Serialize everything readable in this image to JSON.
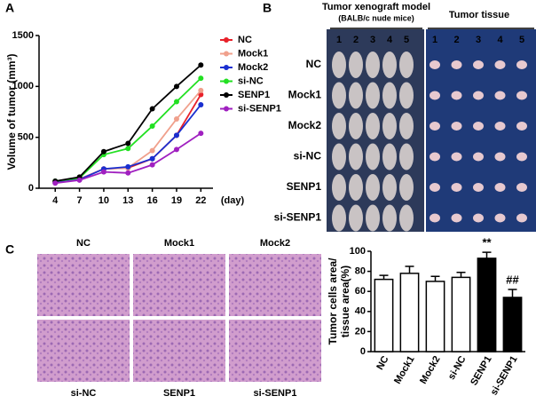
{
  "chart_data": [
    {
      "type": "line",
      "panel": "A",
      "x_label": "(day)",
      "y_label": "Volume of tumor (mm³)",
      "x": [
        4,
        7,
        10,
        13,
        16,
        19,
        22
      ],
      "xlim": [
        2,
        23.5
      ],
      "xticks": [
        4,
        7,
        10,
        13,
        16,
        19,
        22
      ],
      "ylim": [
        0,
        1500
      ],
      "yticks": [
        0,
        500,
        1000,
        1500
      ],
      "series": [
        {
          "name": "NC",
          "color": "#e8212a",
          "values": [
            60,
            90,
            190,
            200,
            290,
            520,
            920
          ]
        },
        {
          "name": "Mock1",
          "color": "#f0a08c",
          "values": [
            60,
            90,
            190,
            200,
            370,
            680,
            960
          ]
        },
        {
          "name": "Mock2",
          "color": "#1a2fd0",
          "values": [
            55,
            85,
            190,
            210,
            290,
            520,
            820
          ]
        },
        {
          "name": "si-NC",
          "color": "#22e022",
          "values": [
            70,
            100,
            330,
            390,
            610,
            850,
            1080
          ]
        },
        {
          "name": "SENP1",
          "color": "#000000",
          "values": [
            70,
            110,
            360,
            440,
            780,
            1000,
            1210
          ]
        },
        {
          "name": "si-SENP1",
          "color": "#a020c0",
          "values": [
            50,
            80,
            160,
            150,
            230,
            380,
            540
          ]
        }
      ]
    },
    {
      "type": "bar",
      "panel": "C",
      "y_label": [
        "Tumor cells area/",
        "tissue area(%)"
      ],
      "categories": [
        "NC",
        "Mock1",
        "Mock2",
        "si-NC",
        "SENP1",
        "si-SENP1"
      ],
      "values": [
        72,
        78,
        70,
        74,
        93,
        54
      ],
      "errors": [
        4,
        7,
        5,
        5,
        6,
        8
      ],
      "colors": [
        "#ffffff",
        "#ffffff",
        "#ffffff",
        "#ffffff",
        "#000000",
        "#000000"
      ],
      "ylim": [
        0,
        100
      ],
      "yticks": [
        0,
        20,
        40,
        60,
        80,
        100
      ],
      "annotations": [
        {
          "text": "**",
          "category": "SENP1"
        },
        {
          "text": "##",
          "category": "si-SENP1"
        }
      ]
    }
  ],
  "panel_b": {
    "letter": "B",
    "model_title": "Tumor xenograft model",
    "model_subtitle": "(BALB/c nude mice)",
    "tissue_title": "Tumor tissue",
    "columns": [
      "1",
      "2",
      "3",
      "4",
      "5"
    ],
    "rows": [
      "NC",
      "Mock1",
      "Mock2",
      "si-NC",
      "SENP1",
      "si-SENP1"
    ]
  },
  "panel_c_images": [
    "NC",
    "Mock1",
    "Mock2",
    "si-NC",
    "SENP1",
    "si-SENP1"
  ]
}
